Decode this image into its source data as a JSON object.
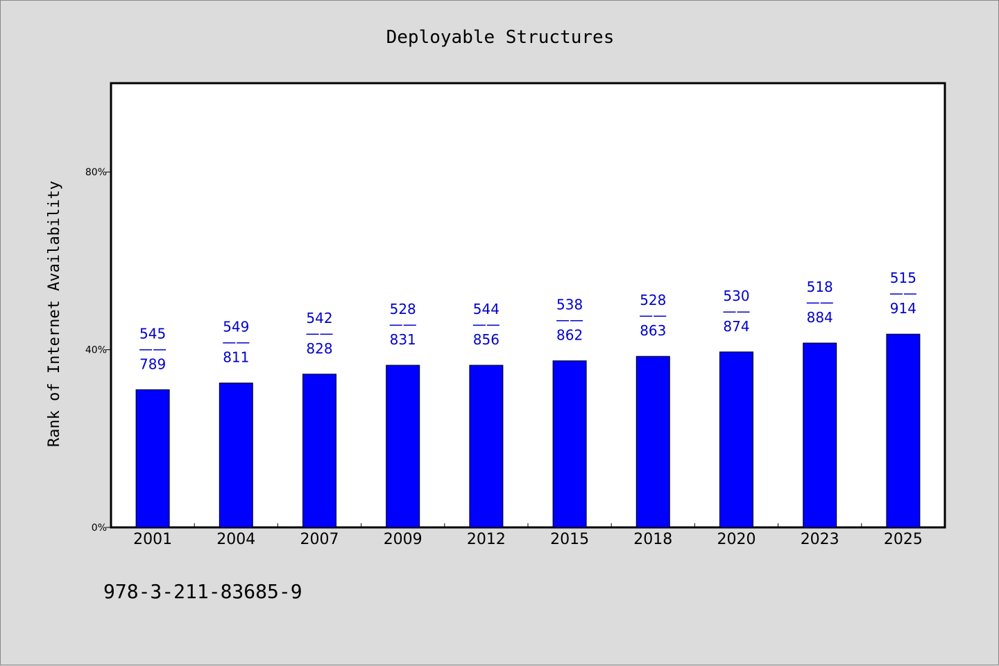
{
  "chart_data": {
    "type": "bar",
    "title": "Deployable Structures",
    "ylabel": "Rank of Internet Availability",
    "xlabel": "",
    "ylim": [
      0,
      100
    ],
    "yticks": [
      0,
      40,
      80
    ],
    "ytick_labels": [
      "0%",
      "40%",
      "80%"
    ],
    "categories": [
      "2001",
      "2004",
      "2007",
      "2009",
      "2012",
      "2015",
      "2018",
      "2020",
      "2023",
      "2025"
    ],
    "values": [
      31,
      32.5,
      34.5,
      36.5,
      36.5,
      37.5,
      38.5,
      39.5,
      41.5,
      43.5
    ],
    "labels_top": [
      "545",
      "549",
      "542",
      "528",
      "544",
      "538",
      "528",
      "530",
      "518",
      "515"
    ],
    "labels_sep": "——",
    "labels_bottom": [
      "789",
      "811",
      "828",
      "831",
      "856",
      "862",
      "863",
      "874",
      "884",
      "914"
    ],
    "bar_color": "#0000ff",
    "label_color": "#0000cc",
    "grid": false,
    "legend": "none"
  },
  "footnote": "978-3-211-83685-9"
}
